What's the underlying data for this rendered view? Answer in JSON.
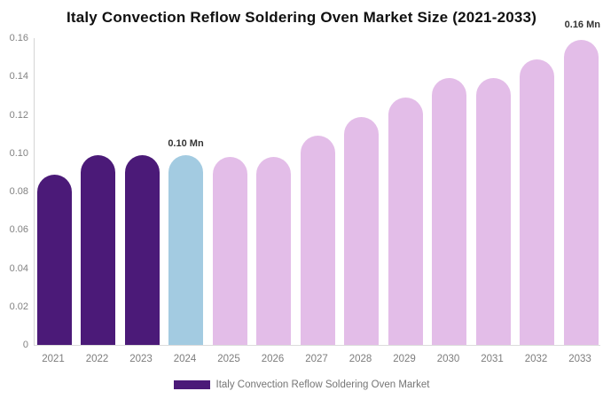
{
  "title": "Italy Convection Reflow Soldering Oven Market Size (2021-2033)",
  "chart_data": {
    "type": "bar",
    "title": "Italy Convection Reflow Soldering Oven Market Size (2021-2033)",
    "categories": [
      "2021",
      "2022",
      "2023",
      "2024",
      "2025",
      "2026",
      "2027",
      "2028",
      "2029",
      "2030",
      "2031",
      "2032",
      "2033"
    ],
    "series": [
      {
        "name": "Italy Convection Reflow Soldering Oven Market",
        "values": [
          0.089,
          0.099,
          0.099,
          0.099,
          0.098,
          0.098,
          0.109,
          0.119,
          0.129,
          0.139,
          0.139,
          0.149,
          0.159
        ]
      }
    ],
    "ylim": [
      0,
      0.16
    ],
    "ytick_values": [
      0,
      0.02,
      0.04,
      0.06,
      0.08,
      0.1,
      0.12,
      0.14,
      0.16
    ],
    "ytick_labels": [
      "0",
      "0.02",
      "0.04",
      "0.06",
      "0.08",
      "0.10",
      "0.12",
      "0.14",
      "0.16"
    ],
    "xlabel": "",
    "ylabel": "",
    "grid": false,
    "legend_position": "bottom",
    "bar_colors": [
      "#4B1A78",
      "#4B1A78",
      "#4B1A78",
      "#A3CBE1",
      "#E3BDE8",
      "#E3BDE8",
      "#E3BDE8",
      "#E3BDE8",
      "#E3BDE8",
      "#E3BDE8",
      "#E3BDE8",
      "#E3BDE8",
      "#E3BDE8"
    ],
    "annotations": [
      {
        "text": "0.10 Mn",
        "category": "2024"
      },
      {
        "text": "0.16 Mn",
        "category": "2033"
      }
    ],
    "colors": {
      "historical_bar": "#4B1A78",
      "current_year_bar": "#A3CBE1",
      "forecast_bar": "#E3BDE8",
      "axis_line": "#d4d4d4",
      "tick_text": "#828282",
      "annotation_text": "#333333"
    }
  },
  "legend": {
    "label": "Italy Convection Reflow Soldering Oven Market",
    "swatch_color": "#4B1A78"
  }
}
